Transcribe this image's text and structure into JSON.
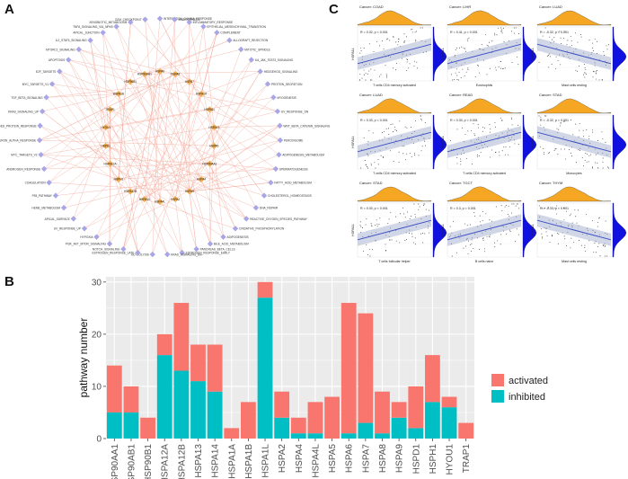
{
  "panels": {
    "a": "A",
    "b": "B",
    "c": "C"
  },
  "colors": {
    "activated": "#f8766d",
    "inhibited": "#00bfc4",
    "network_node_pathway": "#a9a6e6",
    "network_node_gene": "#f5b050",
    "network_edge": "#f2a595",
    "density_top": "#f5a623",
    "density_side": "#1010e0",
    "reg_line": "#3b4fc4",
    "grid_bg": "#ebebeb"
  },
  "network": {
    "pathways": [
      "INTERFERON_GAMMA_RESPONSE",
      "ANGIOGENESIS",
      "INFLAMMATORY_RESPONSE",
      "EPITHELIAL_MESENCHYMAL_TRANSITION",
      "COMPLEMENT",
      "ALLOGRAFT_REJECTION",
      "MITOTIC_SPINDLE",
      "IL6_JAK_STAT3_SIGNALING",
      "HEDGEHOG_SIGNALING",
      "PROTEIN_SECRETION",
      "MYOGENESIS",
      "UV_RESPONSE_DN",
      "WNT_BETA_CATENIN_SIGNALING",
      "PEROXISOME",
      "ADIPOGENESIS_METABOLISM",
      "SPERMATOGENESIS",
      "FATTY_ACID_METABOLISM",
      "CHOLESTEROL_HOMEOSTASIS",
      "DNA_REPAIR",
      "REACTIVE_OXYGEN_SPECIES_PATHWAY",
      "OXIDATIVE_PHOSPHORYLATION",
      "ADIPOGENESIS",
      "BILE_ACID_METABOLISM",
      "PANCREAS_BETA_CELLS",
      "ESTROGEN_RESPONSE_EARLY",
      "KRAS_SIGNALING_DN",
      "GLYCOLYSIS",
      "ESTROGEN_RESPONSE_LATE",
      "NOTCH_SIGNALING",
      "PI3K_AKT_MTOR_SIGNALING",
      "HYPOXIA",
      "UV_RESPONSE_UP",
      "APICAL_SURFACE",
      "HEME_METABOLISM",
      "P53_PATHWAY",
      "COAGULATION",
      "ANDROGEN_RESPONSE",
      "MYC_TARGETS_V2",
      "INTERFERON_ALPHA_RESPONSE",
      "UNFOLDED_PROTEIN_RESPONSE",
      "KRAS_SIGNALING_UP",
      "TGF_BETA_SIGNALING",
      "MYC_TARGETS_V1",
      "E2F_TARGETS",
      "APOPTOSIS",
      "MTORC1_SIGNALING",
      "IL2_STAT5_SIGNALING",
      "APICAL_JUNCTION",
      "TNFA_SIGNALING_VIA_NFKB",
      "XENOBIOTIC_METABOLISM",
      "G2M_CHECKPOINT"
    ],
    "genes": [
      "HSPA6",
      "HSPA8",
      "HSPA7",
      "HSPA1A",
      "HSPA1L",
      "HSPA13",
      "HSPA5",
      "HSP90AA1",
      "HSPA4",
      "HSPA9",
      "HSPA2",
      "HSPA4L",
      "HSPA14",
      "HSPA12B",
      "HSPH1",
      "HSPA12A",
      "HSPD1",
      "HYOU1",
      "TRAP1",
      "HSPA1B",
      "HSP90B1",
      "HSP90AB1"
    ]
  },
  "scatter_grid": {
    "y_label": "HSPA1L",
    "panels": [
      {
        "title": "Cancer: COAD",
        "stat": "R = 0.32, p < 0.001",
        "x_label": "T cells CD4 memory activated",
        "slope": "pos"
      },
      {
        "title": "Cancer: LIHR",
        "stat": "R = 0.41, p < 0.001",
        "x_label": "Eosinophils",
        "slope": "pos"
      },
      {
        "title": "Cancer: LUAD",
        "stat": "R = -0.32, p < 0.001",
        "x_label": "Mast cells resting",
        "slope": "neg"
      },
      {
        "title": "Cancer: LUAD",
        "stat": "R = 0.33, p < 0.001",
        "x_label": "T cells CD4 memory activated",
        "slope": "pos"
      },
      {
        "title": "Cancer: READ",
        "stat": "R = 0.33, p < 0.001",
        "x_label": "T cells CD4 memory activated",
        "slope": "pos"
      },
      {
        "title": "Cancer: STAD",
        "stat": "R = -0.32, p < 0.001",
        "x_label": "Monocytes",
        "slope": "neg"
      },
      {
        "title": "Cancer: STAD",
        "stat": "R = 0.33, p < 0.001",
        "x_label": "T cells follicular helper",
        "slope": "pos"
      },
      {
        "title": "Cancer: TGCT",
        "stat": "R = 0.3, p < 0.001",
        "x_label": "B cells naive",
        "slope": "pos"
      },
      {
        "title": "Cancer: THYM",
        "stat": "R = -0.33, p < 0.001",
        "x_label": "Mast cells resting",
        "slope": "neg"
      }
    ]
  },
  "chart_data": {
    "type": "bar",
    "stacked": true,
    "categories": [
      "HSP90AA1",
      "HSP90AB1",
      "HSP90B1",
      "HSPA12A",
      "HSPA12B",
      "HSPA13",
      "HSPA14",
      "HSPA1A",
      "HSPA1B",
      "HSPA1L",
      "HSPA2",
      "HSPA4",
      "HSPA4L",
      "HSPA5",
      "HSPA6",
      "HSPA7",
      "HSPA8",
      "HSPA9",
      "HSPD1",
      "HSPH1",
      "HYOU1",
      "TRAP1"
    ],
    "series": [
      {
        "name": "inhibited",
        "values": [
          5,
          5,
          0,
          16,
          13,
          11,
          9,
          0,
          0,
          27,
          4,
          1,
          1,
          0,
          1,
          3,
          1,
          4,
          2,
          7,
          6,
          0
        ]
      },
      {
        "name": "activated",
        "values": [
          9,
          5,
          4,
          4,
          13,
          7,
          9,
          2,
          7,
          3,
          5,
          3,
          6,
          8,
          25,
          21,
          8,
          3,
          8,
          9,
          2,
          3
        ]
      }
    ],
    "ylabel": "pathway number",
    "ylim": [
      0,
      31
    ],
    "yticks": [
      "0",
      "10",
      "20",
      "30"
    ],
    "legend": "right"
  }
}
